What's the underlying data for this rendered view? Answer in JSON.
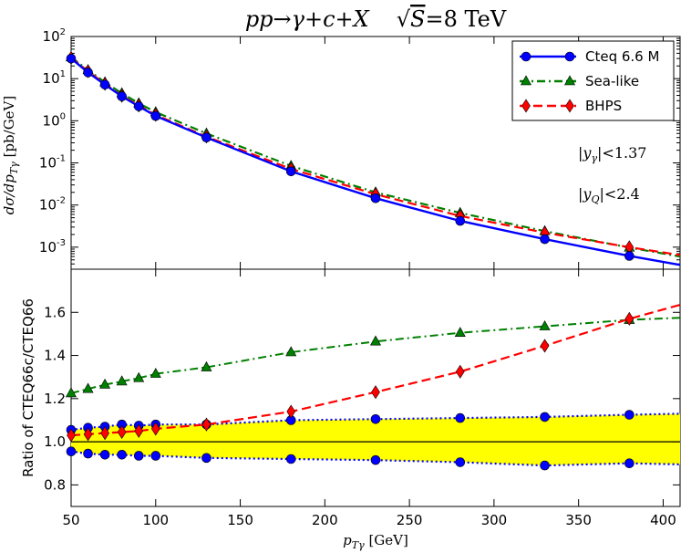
{
  "chart_data": [
    {
      "type": "line",
      "title": "pp→γ+c+X     √S =8 TeV",
      "title_parts": {
        "process": "pp→γ+c+X",
        "sqrt": "√",
        "s_var": "S",
        "energy": "=8 TeV"
      },
      "ylabel": "dσ/dp_Tγ [pb/GeV]",
      "ylabel_parts": {
        "main": "dσ/dp",
        "sub": "Tγ",
        "unit": " [pb/GeV]"
      },
      "yscale": "log",
      "xlim": [
        50,
        410
      ],
      "ylim": [
        0.0003,
        100
      ],
      "y_ticks": [
        0.001,
        0.01,
        0.1,
        1,
        10,
        100
      ],
      "y_tick_labels": [
        {
          "base": "10",
          "exp": "-3"
        },
        {
          "base": "10",
          "exp": "-2"
        },
        {
          "base": "10",
          "exp": "-1"
        },
        {
          "base": "10",
          "exp": "0"
        },
        {
          "base": "10",
          "exp": "1"
        },
        {
          "base": "10",
          "exp": "2"
        }
      ],
      "annotations": [
        {
          "pre": "|y",
          "sub": "γ",
          "post": "|<1.37"
        },
        {
          "pre": "|y",
          "sub": "Q",
          "post": "|<2.4"
        }
      ],
      "legend_position": "top-right",
      "series": [
        {
          "name": "Cteq 6.6 M",
          "color": "#0000ff",
          "marker": "circle",
          "style": "solid",
          "x": [
            50,
            60,
            70,
            80,
            90,
            100,
            130,
            180,
            230,
            280,
            330,
            380
          ],
          "y": [
            30,
            14,
            7.2,
            3.8,
            2.2,
            1.3,
            0.4,
            0.063,
            0.0145,
            0.0042,
            0.00155,
            0.00062
          ],
          "curve_end": 0.00038
        },
        {
          "name": "Sea-like",
          "color": "#008000",
          "marker": "triangle",
          "style": "dashdot",
          "x": [
            50,
            60,
            70,
            80,
            90,
            100,
            130,
            180,
            230,
            280,
            330,
            380
          ],
          "y": [
            32,
            16,
            8.2,
            4.5,
            2.6,
            1.6,
            0.5,
            0.085,
            0.02,
            0.0065,
            0.0024,
            0.00098
          ],
          "curve_end": 0.0006
        },
        {
          "name": "BHPS",
          "color": "#ff0000",
          "marker": "diamond",
          "style": "dashed",
          "x": [
            50,
            60,
            70,
            80,
            90,
            100,
            130,
            180,
            230,
            280,
            330,
            380
          ],
          "y": [
            31,
            15,
            7.5,
            3.9,
            2.3,
            1.38,
            0.42,
            0.072,
            0.018,
            0.0055,
            0.0022,
            0.001
          ],
          "curve_end": 0.00065
        }
      ]
    },
    {
      "type": "line",
      "xlabel": "p_Tγ [GeV]",
      "xlabel_parts": {
        "main": "p",
        "sub": "Tγ",
        "unit": " [GeV]"
      },
      "ylabel": "Ratio of CTEQ66c/CTEQ66",
      "xlim": [
        50,
        410
      ],
      "ylim": [
        0.7,
        1.8
      ],
      "x_ticks": [
        50,
        100,
        150,
        200,
        250,
        300,
        350,
        400
      ],
      "y_ticks": [
        0.8,
        1.0,
        1.2,
        1.4,
        1.6
      ],
      "y_tick_labels": [
        "0.8",
        "1.0",
        "1.2",
        "1.4",
        "1.6"
      ],
      "x_tick_labels": [
        "50",
        "100",
        "150",
        "200",
        "250",
        "300",
        "350",
        "400"
      ],
      "band_color": "#ffff00",
      "series": [
        {
          "name": "Sea-like",
          "color": "#008000",
          "marker": "triangle",
          "style": "dashdot",
          "x": [
            50,
            60,
            70,
            80,
            90,
            100,
            130,
            180,
            230,
            280,
            330,
            380
          ],
          "y": [
            1.225,
            1.245,
            1.265,
            1.28,
            1.295,
            1.315,
            1.345,
            1.415,
            1.465,
            1.505,
            1.535,
            1.565
          ],
          "curve_end": 1.575
        },
        {
          "name": "BHPS",
          "color": "#ff0000",
          "marker": "diamond",
          "style": "dashed",
          "x": [
            50,
            60,
            70,
            80,
            90,
            100,
            130,
            180,
            230,
            280,
            330,
            380
          ],
          "y": [
            1.03,
            1.035,
            1.04,
            1.045,
            1.05,
            1.06,
            1.08,
            1.14,
            1.23,
            1.325,
            1.445,
            1.57
          ],
          "curve_end": 1.635
        },
        {
          "name": "Cteq 6.6 M upper",
          "color": "#0000ff",
          "marker": "circle",
          "style": "dotted",
          "x": [
            50,
            60,
            70,
            80,
            90,
            100,
            130,
            180,
            230,
            280,
            330,
            380
          ],
          "y": [
            1.055,
            1.065,
            1.07,
            1.08,
            1.075,
            1.08,
            1.08,
            1.1,
            1.105,
            1.11,
            1.115,
            1.125
          ],
          "curve_end": 1.13
        },
        {
          "name": "Cteq 6.6 M lower",
          "color": "#0000ff",
          "marker": "circle",
          "style": "dotted",
          "x": [
            50,
            60,
            70,
            80,
            90,
            100,
            130,
            180,
            230,
            280,
            330,
            380
          ],
          "y": [
            0.955,
            0.945,
            0.94,
            0.94,
            0.935,
            0.935,
            0.925,
            0.92,
            0.915,
            0.905,
            0.89,
            0.9
          ],
          "curve_end": 0.895
        }
      ]
    }
  ]
}
